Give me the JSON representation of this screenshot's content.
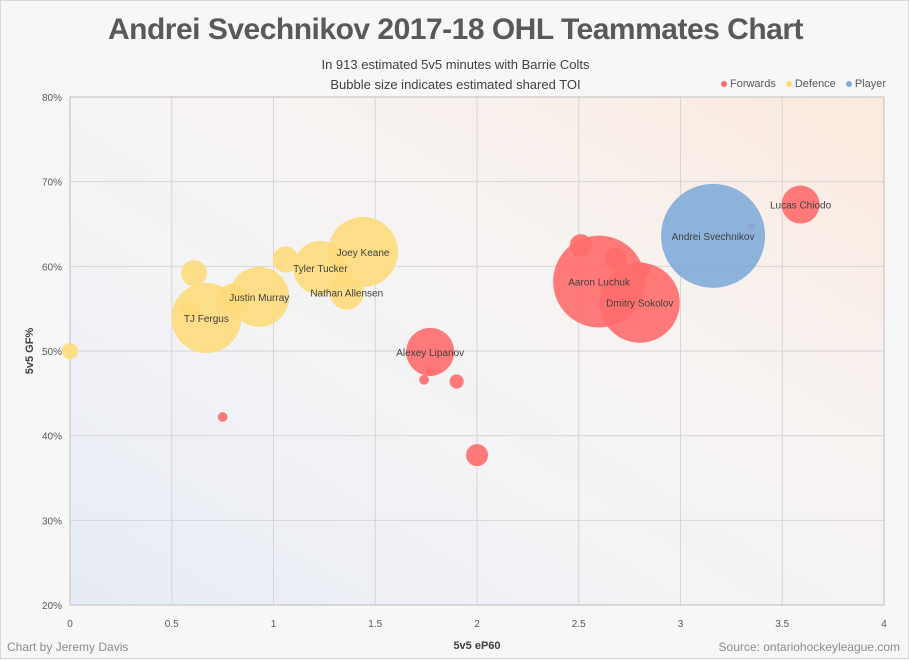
{
  "header": {
    "title": "Andrei Svechnikov 2017-18 OHL Teammates Chart",
    "subtitle1": "In 913 estimated 5v5 minutes with Barrie Colts",
    "subtitle2": "Bubble size indicates estimated shared TOI"
  },
  "footer": {
    "credit": "Chart by Jeremy Davis",
    "source": "Source: ontariohockeyleague.com"
  },
  "legend": [
    {
      "label": "Forwards",
      "color": "#ff6b6b"
    },
    {
      "label": "Defence",
      "color": "#fedc7c"
    },
    {
      "label": "Player",
      "color": "#81acd9"
    }
  ],
  "chart_data": {
    "type": "scatter",
    "subtype": "bubble",
    "title": "Andrei Svechnikov 2017-18 OHL Teammates Chart",
    "subtitle": [
      "In 913 estimated 5v5 minutes with Barrie Colts",
      "Bubble size indicates estimated shared TOI"
    ],
    "xlabel": "5v5 eP60",
    "ylabel": "5v5 GF%",
    "xlim": [
      0,
      4
    ],
    "ylim": [
      20,
      80
    ],
    "xticks": [
      0,
      0.5,
      1,
      1.5,
      2,
      2.5,
      3,
      3.5,
      4
    ],
    "xtick_labels": [
      "0",
      "0.5",
      "1",
      "1.5",
      "2",
      "2.5",
      "3",
      "3.5",
      "4"
    ],
    "yticks": [
      20,
      30,
      40,
      50,
      60,
      70,
      80
    ],
    "ytick_labels": [
      "20%",
      "30%",
      "40%",
      "50%",
      "60%",
      "70%",
      "80%"
    ],
    "grid": true,
    "legend_position": "top-right",
    "series": [
      {
        "name": "Forwards",
        "color": "#ff6b6b",
        "points": [
          {
            "label": "Aaron Luchuk",
            "x": 2.6,
            "y": 58.2,
            "size": 714
          },
          {
            "label": "Dmitry Sokolov",
            "x": 2.8,
            "y": 55.7,
            "size": 540
          },
          {
            "label": "Alexey Lipanov",
            "x": 1.77,
            "y": 49.9,
            "size": 194
          },
          {
            "label": "Lucas Chiodo",
            "x": 3.59,
            "y": 67.3,
            "size": 122
          },
          {
            "label": "",
            "x": 2.51,
            "y": 62.5,
            "size": 41
          },
          {
            "label": "",
            "x": 2.68,
            "y": 60.9,
            "size": 41
          },
          {
            "label": "",
            "x": 2.81,
            "y": 59.5,
            "size": 22
          },
          {
            "label": "",
            "x": 2.0,
            "y": 37.7,
            "size": 41
          },
          {
            "label": "",
            "x": 1.9,
            "y": 46.4,
            "size": 17
          },
          {
            "label": "",
            "x": 1.77,
            "y": 47.6,
            "size": 8
          },
          {
            "label": "",
            "x": 1.74,
            "y": 46.6,
            "size": 8
          },
          {
            "label": "",
            "x": 0.75,
            "y": 42.2,
            "size": 8
          },
          {
            "label": "",
            "x": 3.35,
            "y": 64.7,
            "size": 5
          }
        ]
      },
      {
        "name": "Defence",
        "color": "#fedc7c",
        "points": [
          {
            "label": "TJ Fergus",
            "x": 0.67,
            "y": 53.9,
            "size": 414
          },
          {
            "label": "Joey Keane",
            "x": 1.44,
            "y": 61.7,
            "size": 414
          },
          {
            "label": "Justin Murray",
            "x": 0.93,
            "y": 56.4,
            "size": 304
          },
          {
            "label": "Tyler Tucker",
            "x": 1.23,
            "y": 59.8,
            "size": 246
          },
          {
            "label": "Nathan Allensen",
            "x": 1.36,
            "y": 56.9,
            "size": 98
          },
          {
            "label": "",
            "x": 0.8,
            "y": 56.2,
            "size": 76
          },
          {
            "label": "",
            "x": 1.06,
            "y": 60.8,
            "size": 57
          },
          {
            "label": "",
            "x": 0.61,
            "y": 59.2,
            "size": 57
          },
          {
            "label": "",
            "x": 0.59,
            "y": 54.7,
            "size": 34
          },
          {
            "label": "",
            "x": 0.0,
            "y": 50.0,
            "size": 22
          }
        ]
      },
      {
        "name": "Player",
        "color": "#81acd9",
        "points": [
          {
            "label": "Andrei Svechnikov",
            "x": 3.16,
            "y": 63.6,
            "size": 913
          }
        ]
      }
    ]
  }
}
